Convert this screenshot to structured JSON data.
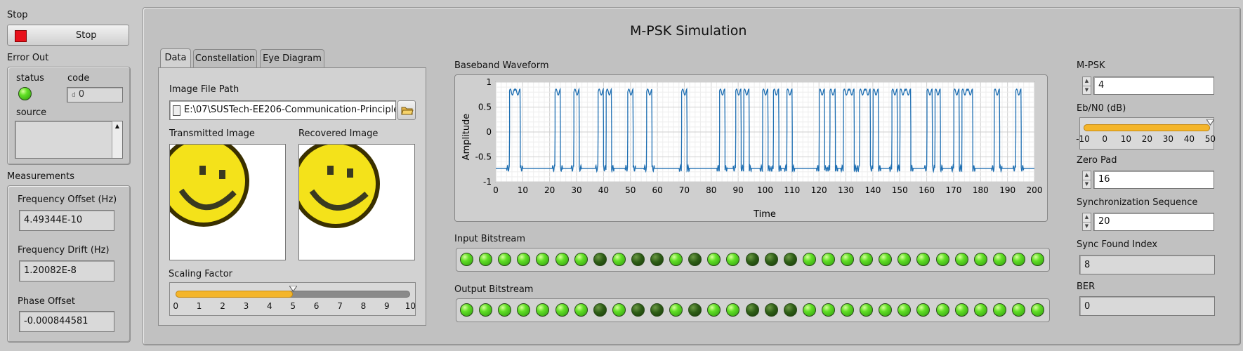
{
  "left": {
    "stop_label": "Stop",
    "stop_button": "Stop",
    "error_out_label": "Error Out",
    "status_label": "status",
    "code_label": "code",
    "code_value": "0",
    "code_prefix": "d",
    "source_label": "source",
    "measurements_label": "Measurements",
    "freq_offset_label": "Frequency Offset (Hz)",
    "freq_offset_value": "4.49344E-10",
    "freq_drift_label": "Frequency Drift (Hz)",
    "freq_drift_value": "1.20082E-8",
    "phase_offset_label": "Phase Offset",
    "phase_offset_value": "-0.000844581"
  },
  "main": {
    "title": "M-PSK Simulation",
    "tabs": [
      "Data",
      "Constellation",
      "Eye Diagram"
    ],
    "image_path_label": "Image File Path",
    "image_path_value": "E:\\07\\SUSTech-EE206-Communication-Principles-",
    "transmitted_label": "Transmitted Image",
    "recovered_label": "Recovered Image",
    "scaling_label": "Scaling Factor",
    "scaling_value": 5,
    "scaling_ticks": [
      "0",
      "1",
      "2",
      "3",
      "4",
      "5",
      "6",
      "7",
      "8",
      "9",
      "10"
    ],
    "input_bitstream_label": "Input Bitstream",
    "output_bitstream_label": "Output Bitstream",
    "input_bits": [
      1,
      1,
      1,
      1,
      1,
      1,
      1,
      0,
      1,
      0,
      0,
      1,
      0,
      1,
      1,
      0,
      0,
      0,
      1,
      1,
      1,
      1,
      1,
      1,
      1,
      1,
      1,
      1,
      1,
      1,
      1
    ],
    "output_bits": [
      1,
      1,
      1,
      1,
      1,
      1,
      1,
      0,
      1,
      0,
      0,
      1,
      0,
      1,
      1,
      0,
      0,
      0,
      1,
      1,
      1,
      1,
      1,
      1,
      1,
      1,
      1,
      1,
      1,
      1,
      1
    ]
  },
  "chart_data": {
    "type": "line",
    "title": "Baseband Waveform",
    "xlabel": "Time",
    "ylabel": "Amplitude",
    "xlim": [
      0,
      200
    ],
    "ylim": [
      -1,
      1
    ],
    "xticks": [
      "0",
      "10",
      "20",
      "30",
      "40",
      "50",
      "60",
      "70",
      "80",
      "90",
      "100",
      "110",
      "120",
      "130",
      "140",
      "150",
      "160",
      "170",
      "180",
      "190",
      "200"
    ],
    "yticks": [
      "1",
      "0.5",
      "0",
      "-0.5",
      "-1"
    ],
    "grid": true,
    "series": [
      {
        "color": "#1f6fb2",
        "pulse_starts": [
          5,
          7,
          22,
          29,
          38,
          41,
          49,
          56,
          69,
          83,
          89,
          92,
          99,
          103,
          108,
          120,
          124,
          129,
          131,
          135,
          137,
          140,
          147,
          150,
          152,
          160,
          163,
          170,
          173,
          175,
          185,
          193
        ],
        "pulse_width": 2,
        "high": 0.8,
        "low": -0.73
      }
    ]
  },
  "right": {
    "mpsk_label": "M-PSK",
    "mpsk_value": "4",
    "ebn0_label": "Eb/N0 (dB)",
    "ebn0_value": 50,
    "ebn0_ticks": [
      "-10",
      "0",
      "10",
      "20",
      "30",
      "40",
      "50"
    ],
    "zero_pad_label": "Zero Pad",
    "zero_pad_value": "16",
    "sync_seq_label": "Synchronization Sequence",
    "sync_seq_value": "20",
    "sync_found_label": "Sync Found Index",
    "sync_found_value": "8",
    "ber_label": "BER",
    "ber_value": "0"
  },
  "colors": {
    "accent": "#f4b52a",
    "led_on": "#4fd01b",
    "led_off": "#2e5e16",
    "stop_red": "#e8101a"
  }
}
